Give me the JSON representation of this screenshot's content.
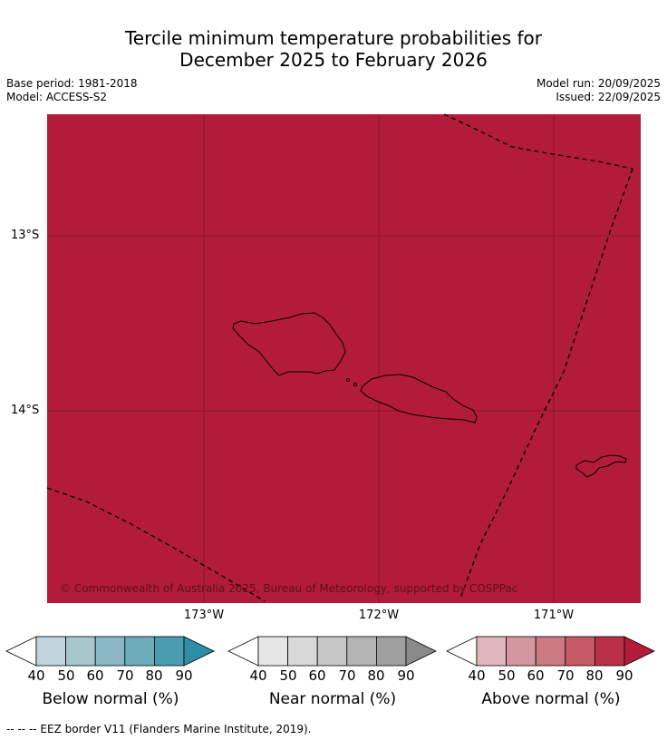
{
  "title": {
    "line1": "Tercile minimum temperature probabilities for",
    "line2": "December 2025 to February 2026"
  },
  "meta": {
    "base_period": "Base period: 1981-2018",
    "model": "Model: ACCESS-S2",
    "model_run": "Model run: 20/09/2025",
    "issued": "Issued: 22/09/2025"
  },
  "map": {
    "fill_color": "#b21c38",
    "lat_labels": [
      "13°S",
      "14°S"
    ],
    "lon_labels": [
      "173°W",
      "172°W",
      "171°W"
    ],
    "copyright": "© Commonwealth of Australia 2025, Bureau of Meteorology, supported by COSPPac"
  },
  "colorbars": [
    {
      "label": "Below normal (%)",
      "ticks": [
        "40",
        "50",
        "60",
        "70",
        "80",
        "90"
      ],
      "colors": [
        "#ffffff",
        "#bfd5db",
        "#a7c7cd",
        "#89b8c4",
        "#6cacbb",
        "#4a9caf",
        "#2d8ea6"
      ]
    },
    {
      "label": "Near normal (%)",
      "ticks": [
        "40",
        "50",
        "60",
        "70",
        "80",
        "90"
      ],
      "colors": [
        "#ffffff",
        "#e6e6e6",
        "#d8d8d8",
        "#c7c7c7",
        "#b4b4b4",
        "#a0a0a0",
        "#8a8a8a"
      ]
    },
    {
      "label": "Above normal (%)",
      "ticks": [
        "40",
        "50",
        "60",
        "70",
        "80",
        "90"
      ],
      "colors": [
        "#ffffff",
        "#e1b7bc",
        "#d5979f",
        "#cc7a82",
        "#c55a67",
        "#b93047",
        "#b21c38"
      ]
    }
  ],
  "footer": "--  --  -- EEZ border V11 (Flanders Marine Institute, 2019)."
}
